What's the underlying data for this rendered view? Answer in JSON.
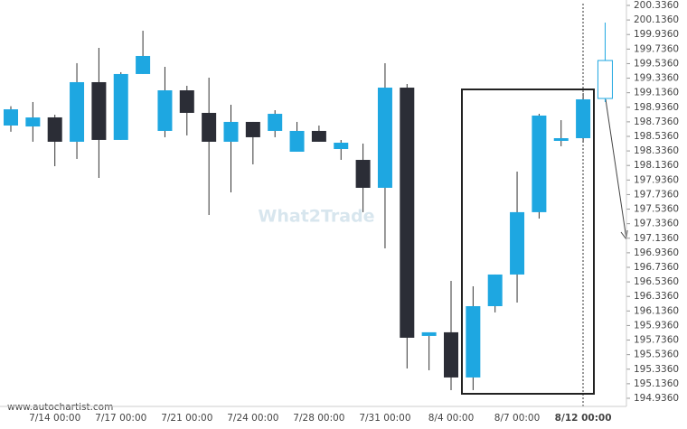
{
  "chart_data": {
    "type": "candlestick",
    "watermark": "What2Trade",
    "source": "www.autochartist.com",
    "categories": [
      null,
      null,
      "7/14 00:00",
      null,
      null,
      "7/17 00:00",
      null,
      null,
      "7/21 00:00",
      null,
      null,
      "7/24 00:00",
      null,
      null,
      "7/28 00:00",
      null,
      null,
      "7/31 00:00",
      null,
      null,
      "8/4 00:00",
      null,
      null,
      "8/7 00:00",
      null,
      null,
      "8/12 00:00"
    ],
    "open": [
      198.685,
      198.672,
      198.797,
      198.462,
      199.281,
      198.487,
      199.393,
      198.611,
      199.169,
      198.859,
      198.462,
      198.735,
      198.611,
      198.325,
      198.611,
      198.362,
      198.213,
      197.829,
      199.206,
      195.793,
      195.843,
      195.222,
      196.202,
      196.637,
      197.494,
      198.474,
      198.511
    ],
    "high": [
      198.95,
      199.008,
      198.834,
      199.542,
      199.753,
      199.418,
      199.988,
      199.492,
      199.231,
      199.343,
      198.971,
      198.735,
      198.896,
      198.735,
      198.685,
      198.486,
      198.437,
      199.542,
      199.256,
      195.793,
      196.55,
      196.475,
      196.637,
      198.052,
      198.846,
      198.759,
      199.132
    ],
    "low": [
      198.6,
      198.462,
      198.126,
      198.226,
      197.965,
      198.487,
      199.393,
      198.524,
      198.549,
      197.456,
      197.766,
      198.151,
      198.524,
      198.325,
      198.462,
      198.213,
      197.494,
      196.997,
      195.346,
      195.321,
      195.048,
      195.048,
      196.116,
      196.252,
      197.406,
      198.4,
      198.449
    ],
    "close": [
      198.908,
      198.796,
      198.462,
      199.281,
      198.487,
      199.393,
      199.641,
      199.169,
      198.859,
      198.462,
      198.735,
      198.524,
      198.846,
      198.611,
      198.462,
      198.449,
      197.829,
      199.206,
      195.768,
      195.843,
      195.222,
      196.202,
      196.637,
      197.494,
      198.822,
      198.511,
      199.045
    ],
    "bull_color": "#1ea7e1",
    "bear_color": "#2b2d36",
    "forecast": {
      "open": 199.057,
      "high": 200.1,
      "low": 199.008,
      "close": 199.579,
      "color": "#1ea7e1"
    },
    "ylim": [
      194.824,
      200.336
    ],
    "yticks": [
      {
        "value": 200.336,
        "label": "200.3360"
      },
      {
        "value": 200.136,
        "label": "200.1360"
      },
      {
        "value": 199.936,
        "label": "199.9360"
      },
      {
        "value": 199.736,
        "label": "199.7360"
      },
      {
        "value": 199.536,
        "label": "199.5360"
      },
      {
        "value": 199.336,
        "label": "199.3360"
      },
      {
        "value": 199.136,
        "label": "199.1360"
      },
      {
        "value": 198.936,
        "label": "198.9360"
      },
      {
        "value": 198.736,
        "label": "198.7360"
      },
      {
        "value": 198.536,
        "label": "198.5360"
      },
      {
        "value": 198.336,
        "label": "198.3360"
      },
      {
        "value": 198.136,
        "label": "198.1360"
      },
      {
        "value": 197.936,
        "label": "197.9360"
      },
      {
        "value": 197.736,
        "label": "197.7360"
      },
      {
        "value": 197.536,
        "label": "197.5360"
      },
      {
        "value": 197.336,
        "label": "197.3360"
      },
      {
        "value": 197.136,
        "label": "197.1360"
      },
      {
        "value": 196.936,
        "label": "196.9360"
      },
      {
        "value": 196.736,
        "label": "196.7360"
      },
      {
        "value": 196.536,
        "label": "196.5360"
      },
      {
        "value": 196.336,
        "label": "196.3360"
      },
      {
        "value": 196.136,
        "label": "196.1360"
      },
      {
        "value": 195.936,
        "label": "195.9360"
      },
      {
        "value": 195.736,
        "label": "195.7360"
      },
      {
        "value": 195.536,
        "label": "195.5360"
      },
      {
        "value": 195.336,
        "label": "195.3360"
      },
      {
        "value": 195.136,
        "label": "195.1360"
      },
      {
        "value": 194.936,
        "label": "194.9360"
      }
    ]
  }
}
